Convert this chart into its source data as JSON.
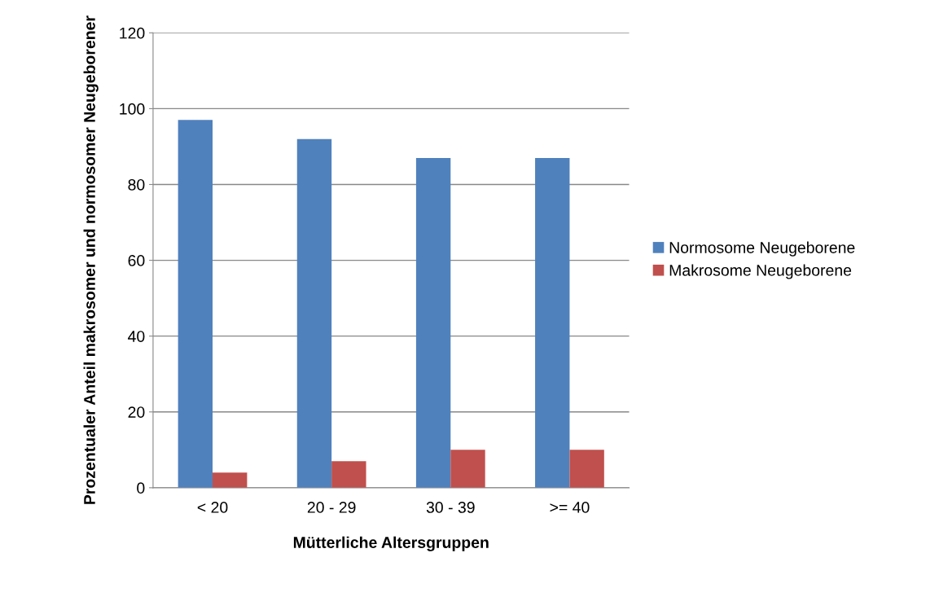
{
  "chart_data": {
    "type": "bar",
    "xlabel": "Mütterliche Altersgruppen",
    "ylabel": "Prozentualer Anteil makrosomer und normosomer Neugeborener",
    "categories": [
      "< 20",
      "20 - 29",
      "30 - 39",
      ">= 40"
    ],
    "series": [
      {
        "name": "Normosome Neugeborene",
        "color": "#4f81bd",
        "values": [
          97,
          92,
          87,
          87
        ]
      },
      {
        "name": "Makrosome Neugeborene",
        "color": "#c0504d",
        "values": [
          4,
          7,
          10,
          10
        ]
      }
    ],
    "ylim": [
      0,
      120
    ],
    "yticks": [
      0,
      20,
      40,
      60,
      80,
      100,
      120
    ],
    "grid": "y",
    "legend": "right"
  }
}
